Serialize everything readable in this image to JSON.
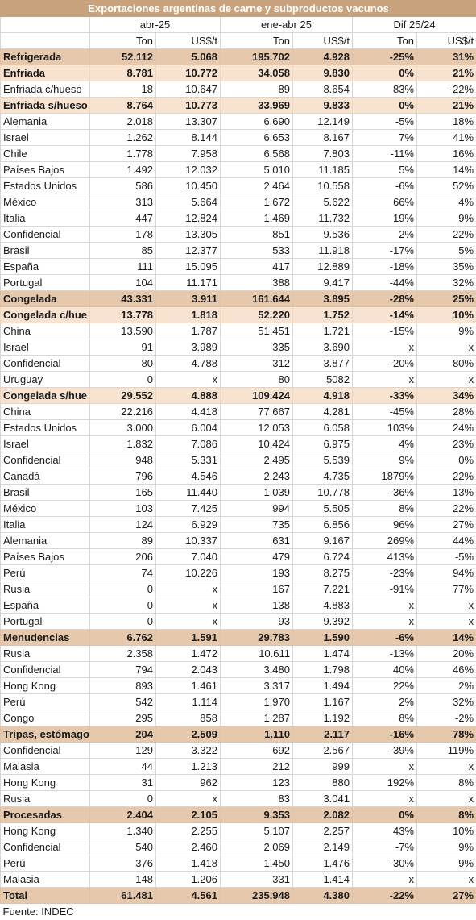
{
  "title": "Exportaciones argentinas de carne y subproductos vacunos",
  "period_headers": [
    "abr-25",
    "ene-abr 25",
    "Dif 25/24"
  ],
  "unit_headers": [
    "Ton",
    "US$/t",
    "Ton",
    "US$/t",
    "Ton",
    "US$/t"
  ],
  "rows": [
    {
      "level": 1,
      "label": "Refrigerada",
      "values": [
        "52.112",
        "5.068",
        "195.702",
        "4.928",
        "-25%",
        "31%"
      ]
    },
    {
      "level": 2,
      "label": "Enfriada",
      "values": [
        "8.781",
        "10.772",
        "34.058",
        "9.830",
        "0%",
        "21%"
      ]
    },
    {
      "level": 3,
      "label": "Enfriada c/hueso",
      "values": [
        "18",
        "10.647",
        "89",
        "8.654",
        "83%",
        "-22%"
      ]
    },
    {
      "level": 2,
      "label": "Enfriada s/hueso",
      "values": [
        "8.764",
        "10.773",
        "33.969",
        "9.833",
        "0%",
        "21%"
      ]
    },
    {
      "level": 3,
      "label": "Alemania",
      "values": [
        "2.018",
        "13.307",
        "6.690",
        "12.149",
        "-5%",
        "18%"
      ]
    },
    {
      "level": 3,
      "label": "Israel",
      "values": [
        "1.262",
        "8.144",
        "6.653",
        "8.167",
        "7%",
        "41%"
      ]
    },
    {
      "level": 3,
      "label": "Chile",
      "values": [
        "1.778",
        "7.958",
        "6.568",
        "7.803",
        "-11%",
        "16%"
      ]
    },
    {
      "level": 3,
      "label": "Países Bajos",
      "values": [
        "1.492",
        "12.032",
        "5.010",
        "11.185",
        "5%",
        "14%"
      ]
    },
    {
      "level": 3,
      "label": "Estados Unidos",
      "values": [
        "586",
        "10.450",
        "2.464",
        "10.558",
        "-6%",
        "52%"
      ]
    },
    {
      "level": 3,
      "label": "México",
      "values": [
        "313",
        "5.664",
        "1.672",
        "5.622",
        "66%",
        "4%"
      ]
    },
    {
      "level": 3,
      "label": "Italia",
      "values": [
        "447",
        "12.824",
        "1.469",
        "11.732",
        "19%",
        "9%"
      ]
    },
    {
      "level": 3,
      "label": "Confidencial",
      "values": [
        "178",
        "13.305",
        "851",
        "9.536",
        "2%",
        "22%"
      ]
    },
    {
      "level": 3,
      "label": "Brasil",
      "values": [
        "85",
        "12.377",
        "533",
        "11.918",
        "-17%",
        "5%"
      ]
    },
    {
      "level": 3,
      "label": "España",
      "values": [
        "111",
        "15.095",
        "417",
        "12.889",
        "-18%",
        "35%"
      ]
    },
    {
      "level": 3,
      "label": "Portugal",
      "values": [
        "104",
        "11.171",
        "388",
        "9.417",
        "-44%",
        "32%"
      ]
    },
    {
      "level": 1,
      "label": "Congelada",
      "values": [
        "43.331",
        "3.911",
        "161.644",
        "3.895",
        "-28%",
        "25%"
      ]
    },
    {
      "level": 2,
      "label": "Congelada c/hue",
      "values": [
        "13.778",
        "1.818",
        "52.220",
        "1.752",
        "-14%",
        "10%"
      ]
    },
    {
      "level": 3,
      "label": "China",
      "values": [
        "13.590",
        "1.787",
        "51.451",
        "1.721",
        "-15%",
        "9%"
      ]
    },
    {
      "level": 3,
      "label": "Israel",
      "values": [
        "91",
        "3.989",
        "335",
        "3.690",
        "x",
        "x"
      ]
    },
    {
      "level": 3,
      "label": "Confidencial",
      "values": [
        "80",
        "4.788",
        "312",
        "3.877",
        "-20%",
        "80%"
      ]
    },
    {
      "level": 3,
      "label": "Uruguay",
      "values": [
        "0",
        "x",
        "80",
        "5082",
        "x",
        "x"
      ]
    },
    {
      "level": 2,
      "label": "Congelada s/hue",
      "values": [
        "29.552",
        "4.888",
        "109.424",
        "4.918",
        "-33%",
        "34%"
      ]
    },
    {
      "level": 3,
      "label": "China",
      "values": [
        "22.216",
        "4.418",
        "77.667",
        "4.281",
        "-45%",
        "28%"
      ]
    },
    {
      "level": 3,
      "label": "Estados Unidos",
      "values": [
        "3.000",
        "6.004",
        "12.053",
        "6.058",
        "103%",
        "24%"
      ]
    },
    {
      "level": 3,
      "label": "Israel",
      "values": [
        "1.832",
        "7.086",
        "10.424",
        "6.975",
        "4%",
        "23%"
      ]
    },
    {
      "level": 3,
      "label": "Confidencial",
      "values": [
        "948",
        "5.331",
        "2.495",
        "5.539",
        "9%",
        "0%"
      ]
    },
    {
      "level": 3,
      "label": "Canadá",
      "values": [
        "796",
        "4.546",
        "2.243",
        "4.735",
        "1879%",
        "22%"
      ]
    },
    {
      "level": 3,
      "label": "Brasil",
      "values": [
        "165",
        "11.440",
        "1.039",
        "10.778",
        "-36%",
        "13%"
      ]
    },
    {
      "level": 3,
      "label": "México",
      "values": [
        "103",
        "7.425",
        "994",
        "5.505",
        "8%",
        "22%"
      ]
    },
    {
      "level": 3,
      "label": "Italia",
      "values": [
        "124",
        "6.929",
        "735",
        "6.856",
        "96%",
        "27%"
      ]
    },
    {
      "level": 3,
      "label": "Alemania",
      "values": [
        "89",
        "10.337",
        "631",
        "9.167",
        "269%",
        "44%"
      ]
    },
    {
      "level": 3,
      "label": "Países Bajos",
      "values": [
        "206",
        "7.040",
        "479",
        "6.724",
        "413%",
        "-5%"
      ]
    },
    {
      "level": 3,
      "label": "Perú",
      "values": [
        "74",
        "10.226",
        "193",
        "8.275",
        "-23%",
        "94%"
      ]
    },
    {
      "level": 3,
      "label": "Rusia",
      "values": [
        "0",
        "x",
        "167",
        "7.221",
        "-91%",
        "77%"
      ]
    },
    {
      "level": 3,
      "label": "España",
      "values": [
        "0",
        "x",
        "138",
        "4.883",
        "x",
        "x"
      ]
    },
    {
      "level": 3,
      "label": "Portugal",
      "values": [
        "0",
        "x",
        "93",
        "9.392",
        "x",
        "x"
      ]
    },
    {
      "level": 1,
      "label": "Menudencias",
      "values": [
        "6.762",
        "1.591",
        "29.783",
        "1.590",
        "-6%",
        "14%"
      ]
    },
    {
      "level": 3,
      "label": "Rusia",
      "values": [
        "2.358",
        "1.472",
        "10.611",
        "1.474",
        "-13%",
        "20%"
      ]
    },
    {
      "level": 3,
      "label": "Confidencial",
      "values": [
        "794",
        "2.043",
        "3.480",
        "1.798",
        "40%",
        "46%"
      ]
    },
    {
      "level": 3,
      "label": "Hong Kong",
      "values": [
        "893",
        "1.461",
        "3.317",
        "1.494",
        "22%",
        "2%"
      ]
    },
    {
      "level": 3,
      "label": "Perú",
      "values": [
        "542",
        "1.114",
        "1.970",
        "1.167",
        "2%",
        "32%"
      ]
    },
    {
      "level": 3,
      "label": "Congo",
      "values": [
        "295",
        "858",
        "1.287",
        "1.192",
        "8%",
        "-2%"
      ]
    },
    {
      "level": 1,
      "label": "Tripas, estómago",
      "values": [
        "204",
        "2.509",
        "1.110",
        "2.117",
        "-16%",
        "78%"
      ]
    },
    {
      "level": 3,
      "label": "Confidencial",
      "values": [
        "129",
        "3.322",
        "692",
        "2.567",
        "-39%",
        "119%"
      ]
    },
    {
      "level": 3,
      "label": "Malasia",
      "values": [
        "44",
        "1.213",
        "212",
        "999",
        "x",
        "x"
      ]
    },
    {
      "level": 3,
      "label": "Hong Kong",
      "values": [
        "31",
        "962",
        "123",
        "880",
        "192%",
        "8%"
      ]
    },
    {
      "level": 3,
      "label": "Rusia",
      "values": [
        "0",
        "x",
        "83",
        "3.041",
        "x",
        "x"
      ]
    },
    {
      "level": 1,
      "label": "Procesadas",
      "values": [
        "2.404",
        "2.105",
        "9.353",
        "2.082",
        "0%",
        "8%"
      ]
    },
    {
      "level": 3,
      "label": "Hong Kong",
      "values": [
        "1.340",
        "2.255",
        "5.107",
        "2.257",
        "43%",
        "10%"
      ]
    },
    {
      "level": 3,
      "label": "Confidencial",
      "values": [
        "540",
        "2.460",
        "2.069",
        "2.149",
        "-7%",
        "9%"
      ]
    },
    {
      "level": 3,
      "label": "Perú",
      "values": [
        "376",
        "1.418",
        "1.450",
        "1.476",
        "-30%",
        "9%"
      ]
    },
    {
      "level": 3,
      "label": "Malasia",
      "values": [
        "148",
        "1.206",
        "331",
        "1.414",
        "x",
        "x"
      ]
    },
    {
      "level": "total",
      "label": "Total",
      "values": [
        "61.481",
        "4.561",
        "235.948",
        "4.380",
        "-22%",
        "27%"
      ]
    }
  ],
  "source": "Fuente: INDEC",
  "colors": {
    "title_bg": "#c8a27c",
    "category_bg": "#e6c9ac",
    "subcategory_bg": "#f8e3d0",
    "grid": "#d6d6d6"
  }
}
